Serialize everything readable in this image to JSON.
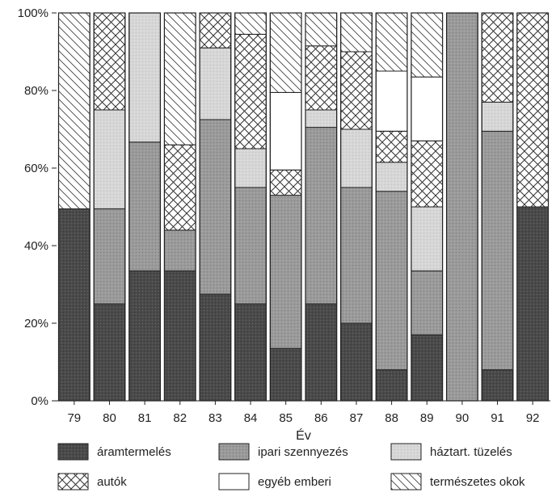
{
  "chart_data": {
    "type": "bar",
    "stacked": true,
    "title": "",
    "xlabel": "Év",
    "ylabel": "",
    "ylim": [
      0,
      100
    ],
    "yticks": [
      "0%",
      "20%",
      "40%",
      "60%",
      "80%",
      "100%"
    ],
    "categories": [
      "79",
      "80",
      "81",
      "82",
      "83",
      "84",
      "85",
      "86",
      "87",
      "88",
      "89",
      "90",
      "91",
      "92"
    ],
    "legend_position": "bottom",
    "series": [
      {
        "name": "áramtermelés",
        "pattern": "dark",
        "values": [
          49.5,
          25,
          33.5,
          33.5,
          27.5,
          25,
          13.5,
          25,
          20,
          8,
          17,
          0,
          8,
          50
        ]
      },
      {
        "name": "ipari szennyezés",
        "pattern": "medium",
        "values": [
          0,
          24.5,
          33.2,
          10.5,
          45,
          30,
          39.5,
          45.5,
          35,
          46,
          16.5,
          100,
          61.5,
          0
        ]
      },
      {
        "name": "háztart. tüzelés",
        "pattern": "light",
        "values": [
          0,
          25.5,
          33.3,
          0,
          18.5,
          10,
          0,
          4.5,
          15,
          7.5,
          16.5,
          0,
          7.5,
          0
        ]
      },
      {
        "name": "autók",
        "pattern": "crosshatch",
        "values": [
          0,
          25,
          0,
          22,
          9,
          29.5,
          6.5,
          16.5,
          20,
          8,
          17,
          0,
          23,
          50
        ]
      },
      {
        "name": "egyéb emberi",
        "pattern": "white",
        "values": [
          0,
          0,
          0,
          0,
          0,
          0,
          20,
          0,
          0,
          15.5,
          16.5,
          0,
          0,
          0
        ]
      },
      {
        "name": "természetes okok",
        "pattern": "diagonal",
        "values": [
          50.5,
          0,
          0,
          34,
          0,
          5.5,
          20.5,
          8.5,
          10,
          15,
          16.5,
          0,
          0,
          0
        ]
      }
    ]
  }
}
